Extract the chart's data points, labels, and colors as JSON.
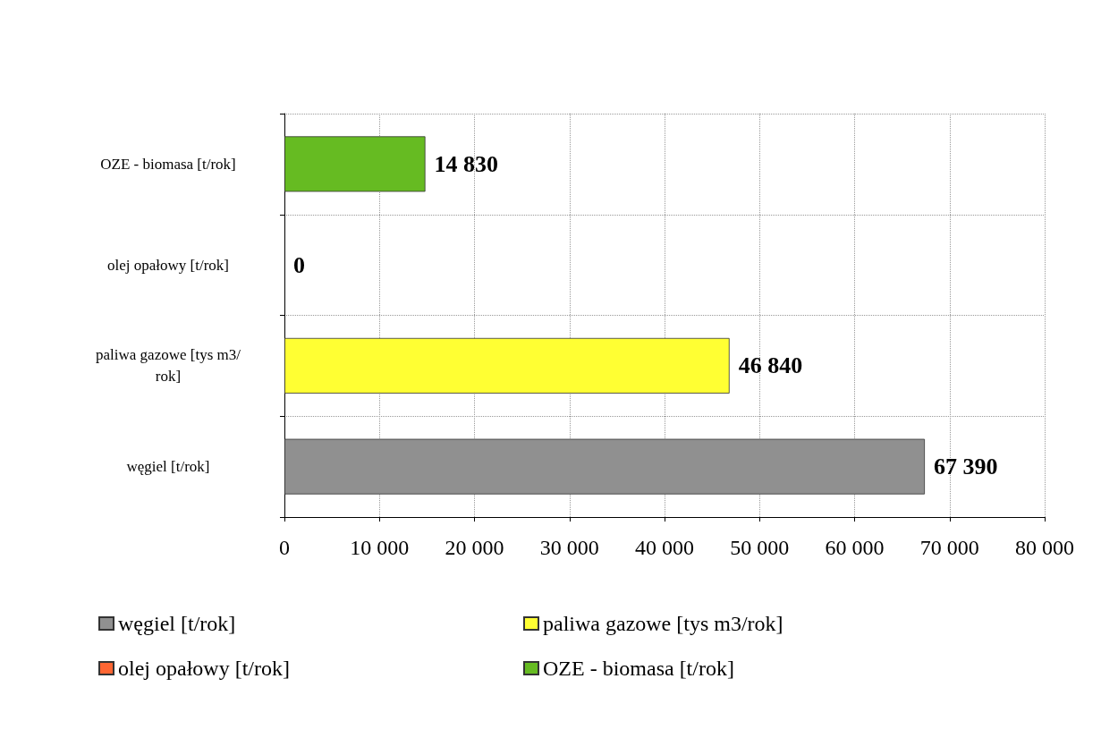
{
  "chart_data": {
    "type": "bar",
    "orientation": "horizontal",
    "categories": [
      "OZE - biomasa [t/rok]",
      "olej opałowy [t/rok]",
      "paliwa gazowe [tys m3/rok]",
      "węgiel [t/rok]"
    ],
    "series": [
      {
        "name": "węgiel [t/rok]",
        "color": "#909090",
        "values": [
          null,
          null,
          null,
          67390
        ]
      },
      {
        "name": "paliwa gazowe [tys m3/rok]",
        "color": "#ffff33",
        "values": [
          null,
          null,
          46840,
          null
        ]
      },
      {
        "name": "olej opałowy [t/rok]",
        "color": "#ff6633",
        "values": [
          null,
          0,
          null,
          null
        ]
      },
      {
        "name": "OZE - biomasa [t/rok]",
        "color": "#66bb22",
        "values": [
          14830,
          null,
          null,
          null
        ]
      }
    ],
    "xlim": [
      0,
      80000
    ],
    "xticks": [
      0,
      {
        "value": 10000,
        "label": "10 000"
      },
      {
        "value": 20000,
        "label": "20 000"
      },
      {
        "value": 30000,
        "label": "30 000"
      },
      {
        "value": 40000,
        "label": "40 000"
      },
      {
        "value": 50000,
        "label": "50 000"
      },
      {
        "value": 60000,
        "label": "60 000"
      },
      {
        "value": 70000,
        "label": "70 000"
      },
      {
        "value": 80000,
        "label": "80 000"
      }
    ],
    "data_labels": true,
    "grid": true,
    "legend": "bottom"
  }
}
